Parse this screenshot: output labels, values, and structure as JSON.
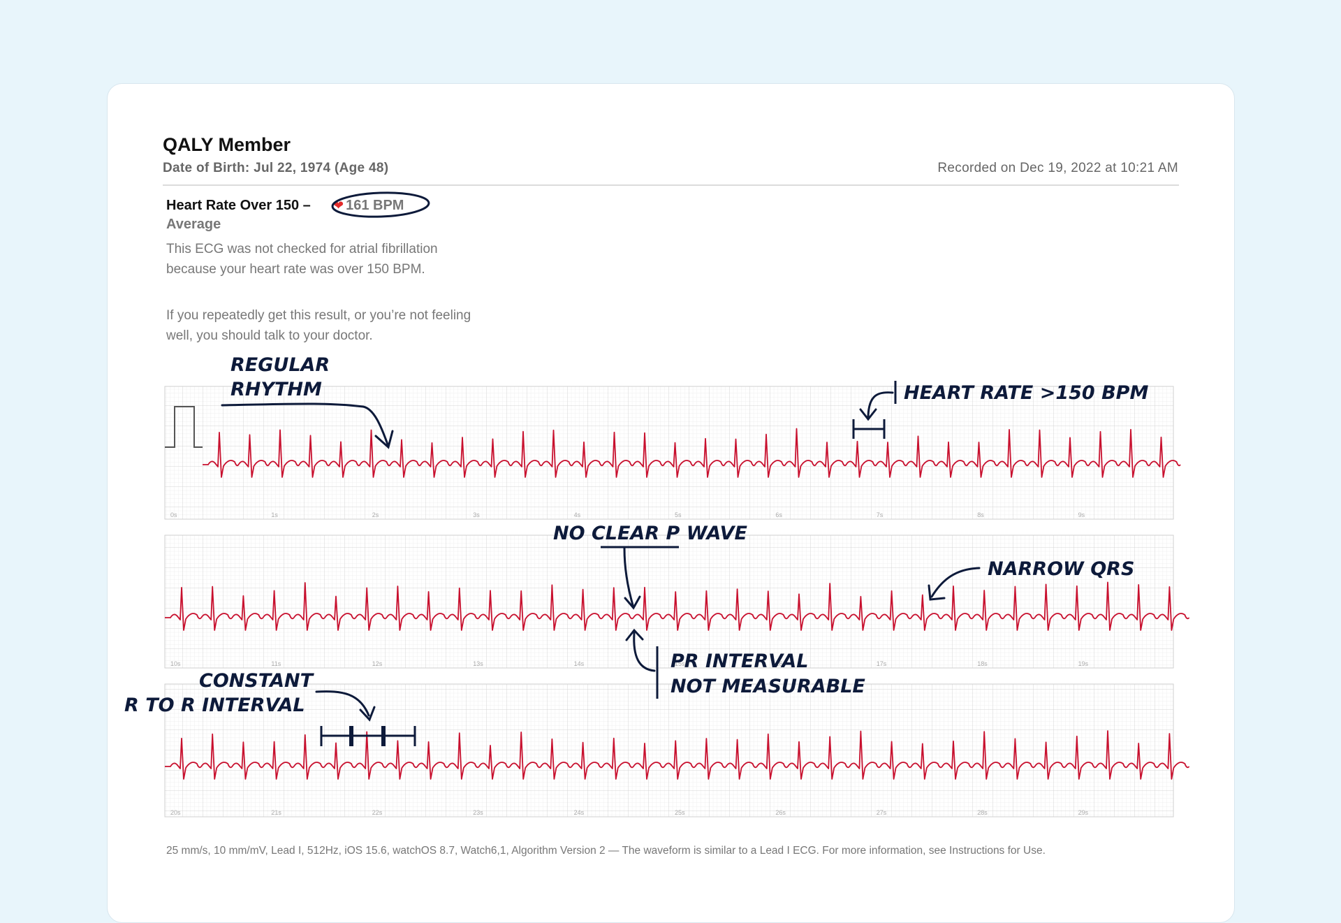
{
  "patient": {
    "name": "QALY Member",
    "dob": "Date of Birth: Jul 22, 1974 (Age 48)",
    "recorded": "Recorded on Dec 19, 2022 at 10:21 AM"
  },
  "result": {
    "classification": "Heart Rate Over 150 –",
    "bpm": "161 BPM",
    "average_label": "Average",
    "description": "This ECG was not checked for atrial fibrillation because your heart rate was over 150 BPM.",
    "advice": "If you repeatedly get this result, or you’re not feeling well, you should talk to your doctor."
  },
  "strips": [
    {
      "ticks": [
        "0s",
        "1s",
        "2s",
        "3s",
        "4s",
        "5s",
        "6s",
        "7s",
        "8s",
        "9s"
      ]
    },
    {
      "ticks": [
        "10s",
        "11s",
        "12s",
        "13s",
        "14s",
        "15s",
        "16s",
        "17s",
        "18s",
        "19s"
      ]
    },
    {
      "ticks": [
        "20s",
        "21s",
        "22s",
        "23s",
        "24s",
        "25s",
        "26s",
        "27s",
        "28s",
        "29s"
      ]
    }
  ],
  "annotations": {
    "regular_rhythm": [
      "REGULAR",
      "RHYTHM"
    ],
    "heart_rate": "HEART RATE >150 BPM",
    "no_p_wave": "NO CLEAR P WAVE",
    "narrow_qrs": "NARROW QRS",
    "pr_interval": [
      "PR INTERVAL",
      "NOT MEASURABLE"
    ],
    "rr_interval": [
      "CONSTANT",
      "R TO R INTERVAL"
    ]
  },
  "footer": "25 mm/s, 10 mm/mV, Lead I, 512Hz, iOS 15.6, watchOS 8.7, Watch6,1, Algorithm Version 2 — The waveform is similar to a Lead I ECG. For more information, see Instructions for Use.",
  "colors": {
    "trace": "#c8102e",
    "grid_minor": "#ececec",
    "grid_major": "#cfcfcf",
    "ink": "#0d1a3a"
  }
}
